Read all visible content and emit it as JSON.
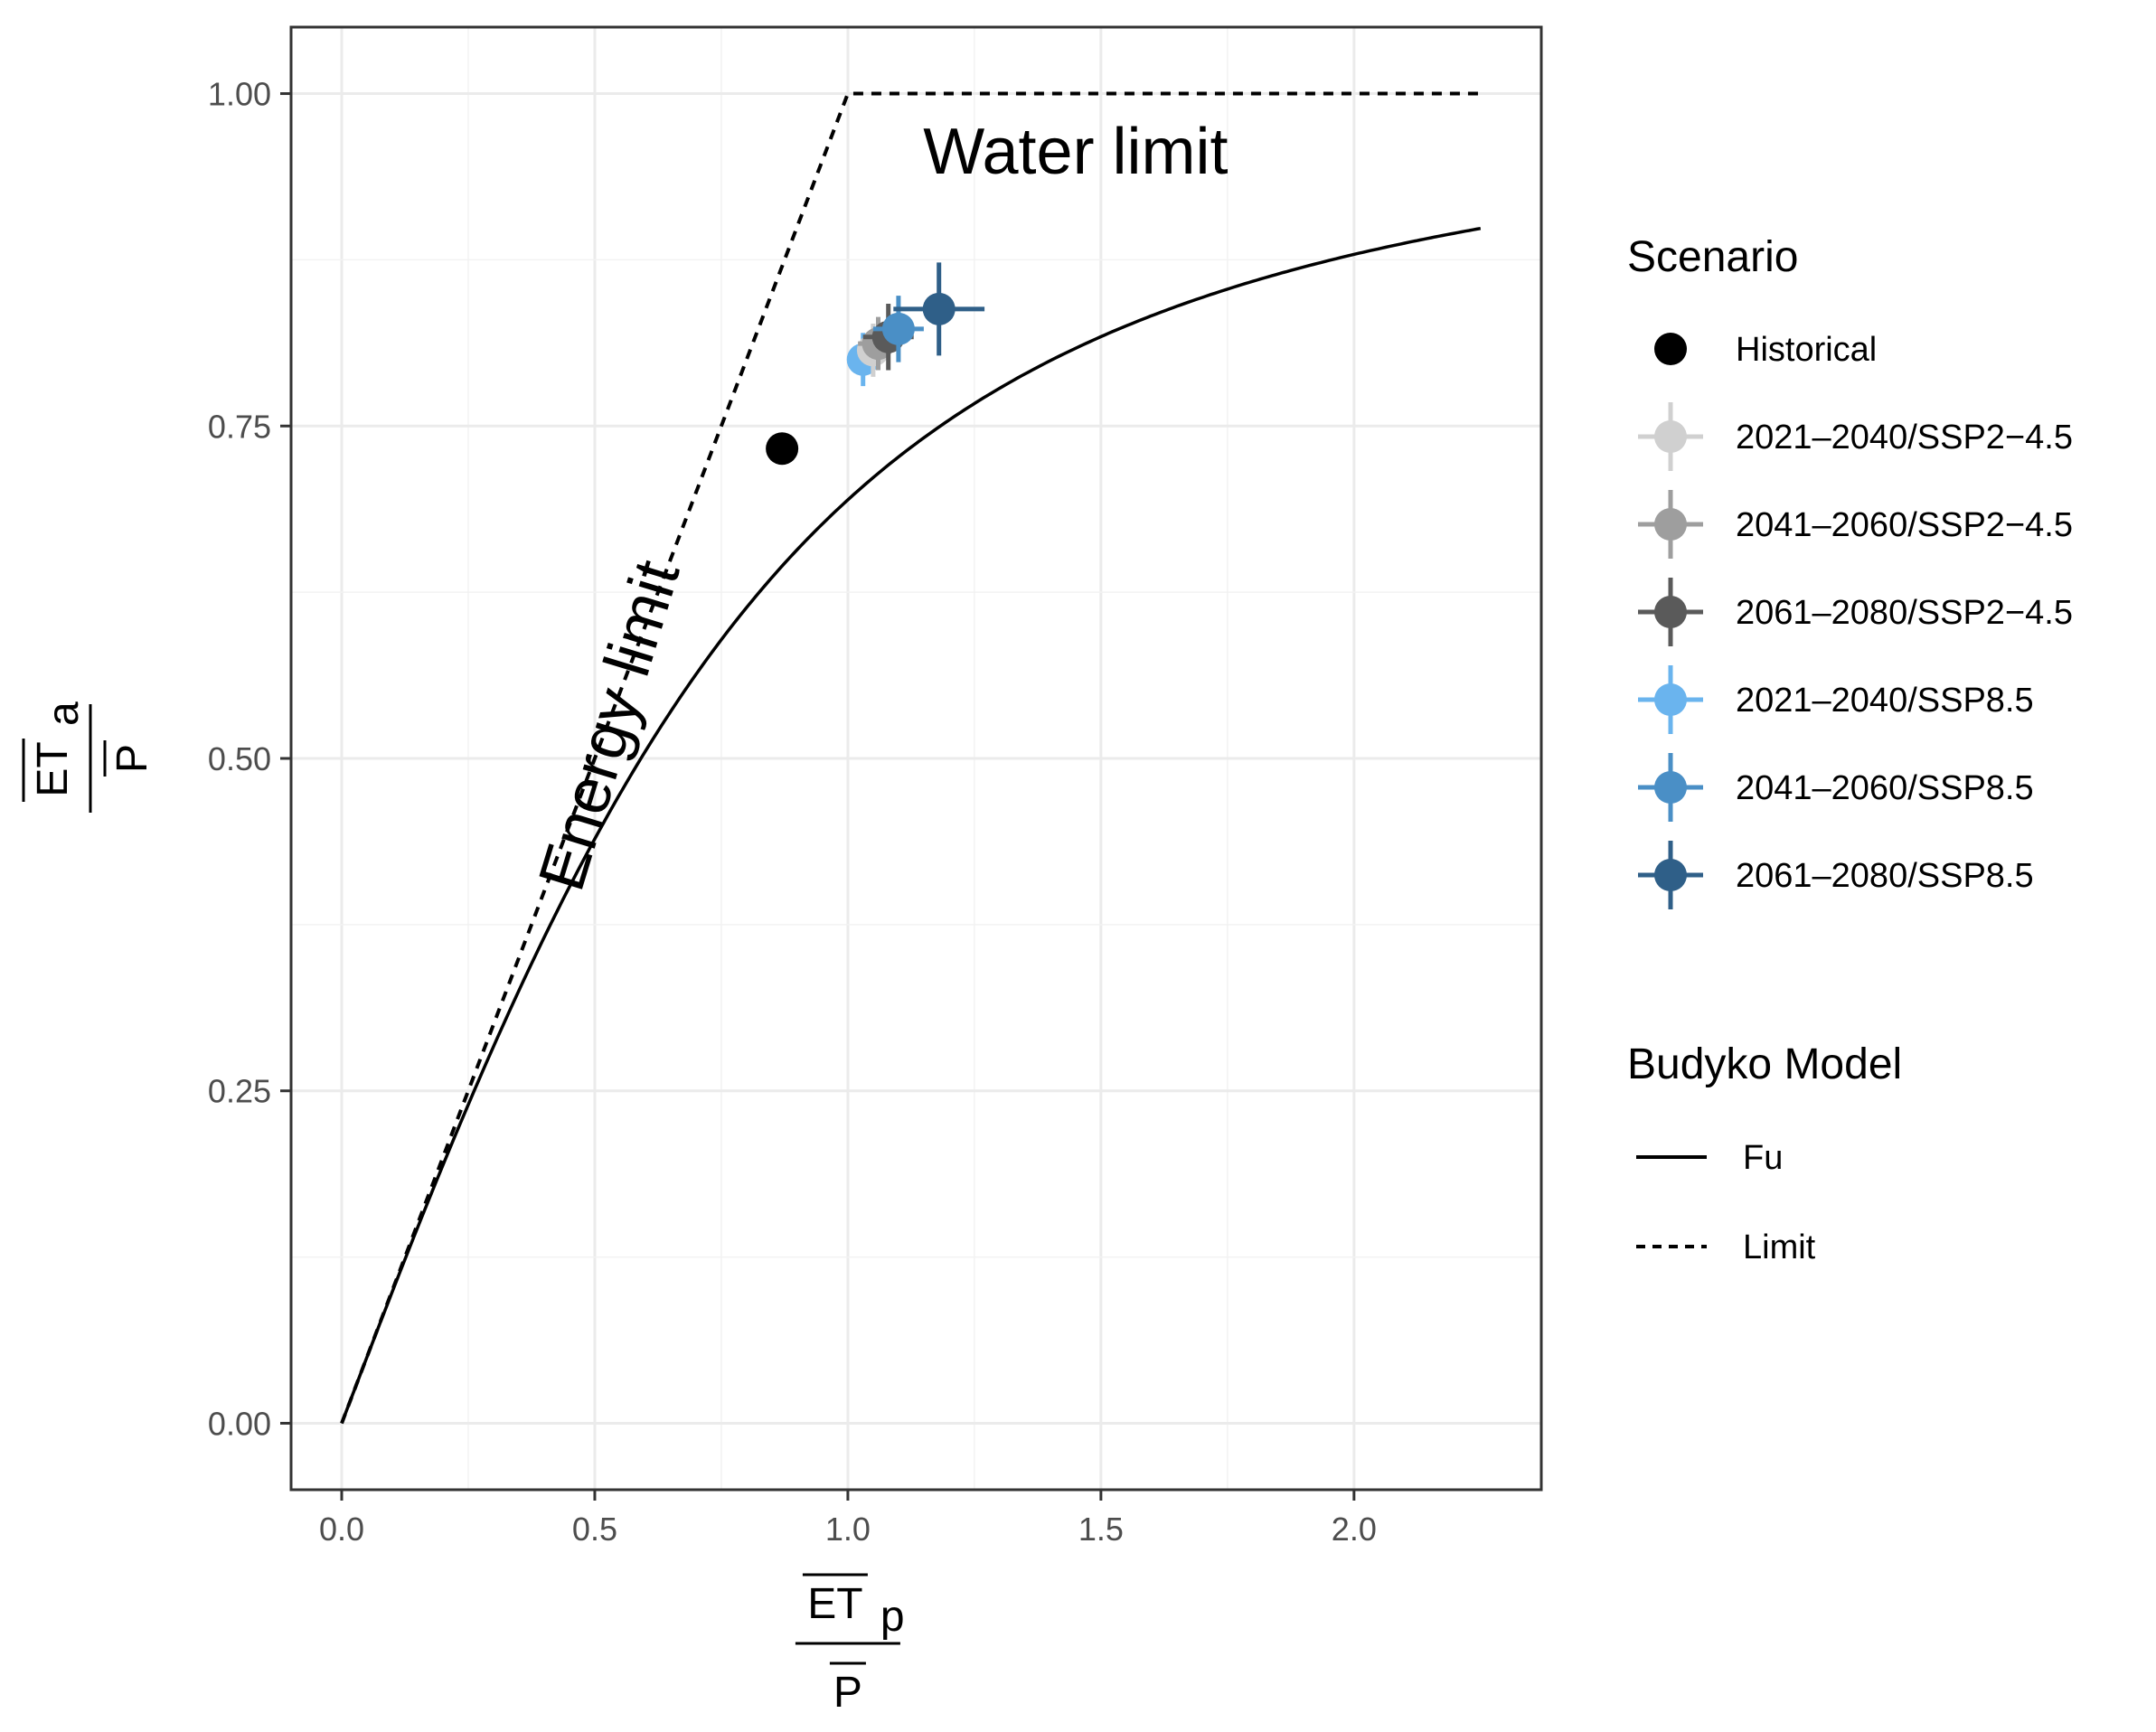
{
  "chart_data": {
    "type": "scatter",
    "x_axis": {
      "label_numerator": "ET",
      "label_numerator_sub": "p",
      "label_denominator": "P",
      "lim": [
        -0.1,
        2.37
      ],
      "ticks": [
        0.0,
        0.5,
        1.0,
        1.5,
        2.0
      ],
      "tick_labels": [
        "0.0",
        "0.5",
        "1.0",
        "1.5",
        "2.0"
      ]
    },
    "y_axis": {
      "label_numerator": "ET",
      "label_numerator_sub": "a",
      "label_denominator": "P",
      "lim": [
        -0.05,
        1.05
      ],
      "ticks": [
        0.0,
        0.25,
        0.5,
        0.75,
        1.0
      ],
      "tick_labels": [
        "0.00",
        "0.25",
        "0.50",
        "0.75",
        "1.00"
      ]
    },
    "grid": true,
    "legend_position": "right",
    "annotations": [
      {
        "text": "Water limit",
        "x": 1.45,
        "y": 0.94,
        "rotation": 0
      },
      {
        "text": "Energy limit",
        "x": 0.57,
        "y": 0.52,
        "rotation": -73
      }
    ],
    "legend_scenario": {
      "title": "Scenario",
      "items": [
        {
          "label": "Historical",
          "color": "#000000",
          "errorbar": false
        },
        {
          "label": "2021–2040/SSP2−4.5",
          "color": "#d0d0d0",
          "errorbar": true
        },
        {
          "label": "2041–2060/SSP2−4.5",
          "color": "#9e9e9e",
          "errorbar": true
        },
        {
          "label": "2061–2080/SSP2−4.5",
          "color": "#5a5a5a",
          "errorbar": true
        },
        {
          "label": "2021–2040/SSP8.5",
          "color": "#6ab4ee",
          "errorbar": true
        },
        {
          "label": "2041–2060/SSP8.5",
          "color": "#4a8fc6",
          "errorbar": true
        },
        {
          "label": "2061–2080/SSP8.5",
          "color": "#2f5f88",
          "errorbar": true
        }
      ]
    },
    "legend_model": {
      "title": "Budyko Model",
      "items": [
        {
          "label": "Fu",
          "linetype": "solid"
        },
        {
          "label": "Limit",
          "linetype": "dashed"
        }
      ]
    },
    "points": [
      {
        "scenario": "Historical",
        "x": 0.87,
        "y": 0.733,
        "xerr": 0,
        "yerr": 0
      },
      {
        "scenario": "2021–2040/SSP8.5",
        "x": 1.03,
        "y": 0.8,
        "xerr": 0.03,
        "yerr": 0.02
      },
      {
        "scenario": "2021–2040/SSP2−4.5",
        "x": 1.05,
        "y": 0.807,
        "xerr": 0.03,
        "yerr": 0.02
      },
      {
        "scenario": "2041–2060/SSP2−4.5",
        "x": 1.06,
        "y": 0.812,
        "xerr": 0.04,
        "yerr": 0.02
      },
      {
        "scenario": "2061–2080/SSP2−4.5",
        "x": 1.08,
        "y": 0.817,
        "xerr": 0.05,
        "yerr": 0.025
      },
      {
        "scenario": "2041–2060/SSP8.5",
        "x": 1.1,
        "y": 0.823,
        "xerr": 0.05,
        "yerr": 0.025
      },
      {
        "scenario": "2061–2080/SSP8.5",
        "x": 1.18,
        "y": 0.838,
        "xerr": 0.09,
        "yerr": 0.035
      }
    ],
    "fu_curve": {
      "omega": 2.6,
      "x_range": [
        0.0,
        2.25
      ]
    },
    "limit_lines": [
      {
        "x": [
          0.0,
          1.0,
          2.25
        ],
        "y": [
          0.0,
          1.0,
          1.0
        ]
      }
    ]
  }
}
